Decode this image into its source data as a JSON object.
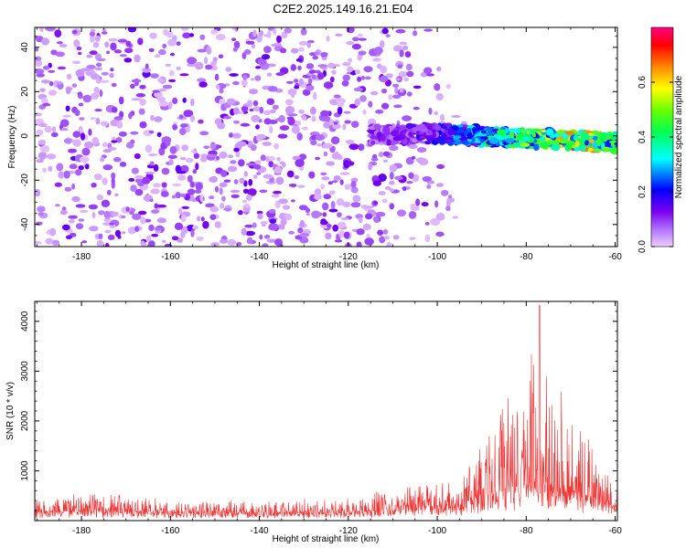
{
  "figure": {
    "title": "C2E2.2025.149.16.21.E04"
  },
  "chart_data": [
    {
      "type": "heatmap",
      "xlabel": "Height of straight line (km)",
      "ylabel": "Frequency (Hz)",
      "xlim": [
        -190.5,
        -59.5
      ],
      "ylim": [
        -50,
        49
      ],
      "xticks": [
        -180,
        -160,
        -140,
        -120,
        -100,
        -80,
        -60
      ],
      "yticks": [
        -40,
        -20,
        0,
        20,
        40
      ],
      "colorbar": {
        "label": "Normalized spectral amplitude",
        "range": [
          0.0,
          0.8
        ],
        "ticks": [
          0.0,
          0.2,
          0.4,
          0.6
        ],
        "colormap": [
          "#eecfff",
          "#b070ff",
          "#7a00ee",
          "#0000ff",
          "#00ffff",
          "#00ff55",
          "#66ff00",
          "#ffff00",
          "#ff8800",
          "#ff0000",
          "#ff0088"
        ]
      },
      "features": {
        "background_noise": "scattered purple blobs across full frequency range for heights -190 to -95 km",
        "signal_band": [
          {
            "x": -110,
            "y": 0.5,
            "amp": 0.12
          },
          {
            "x": -100,
            "y": 1.0,
            "amp": 0.2
          },
          {
            "x": -95,
            "y": 0.5,
            "amp": 0.3
          },
          {
            "x": -90,
            "y": 0,
            "amp": 0.35
          },
          {
            "x": -85,
            "y": -0.5,
            "amp": 0.45
          },
          {
            "x": -80,
            "y": -1,
            "amp": 0.5
          },
          {
            "x": -75,
            "y": -1.5,
            "amp": 0.55
          },
          {
            "x": -70,
            "y": -2,
            "amp": 0.65
          },
          {
            "x": -65,
            "y": -2.5,
            "amp": 0.6
          },
          {
            "x": -60,
            "y": -3,
            "amp": 0.5
          }
        ]
      }
    },
    {
      "type": "line",
      "series": [
        {
          "color": "#ee3333"
        }
      ],
      "xlabel": "Height of straight line (km)",
      "ylabel": "SNR (10 * v/v)",
      "xlim": [
        -190.5,
        -59.5
      ],
      "ylim": [
        0,
        4400
      ],
      "xticks": [
        -180,
        -160,
        -140,
        -120,
        -100,
        -80,
        -60
      ],
      "yticks": [
        1000,
        2000,
        3000,
        4000
      ],
      "envelope": [
        {
          "x": -190,
          "base": 120,
          "peak": 450
        },
        {
          "x": -175,
          "base": 130,
          "peak": 550
        },
        {
          "x": -160,
          "base": 110,
          "peak": 400
        },
        {
          "x": -140,
          "base": 100,
          "peak": 350
        },
        {
          "x": -120,
          "base": 120,
          "peak": 450
        },
        {
          "x": -105,
          "base": 180,
          "peak": 650
        },
        {
          "x": -95,
          "base": 220,
          "peak": 800
        },
        {
          "x": -90,
          "base": 300,
          "peak": 1400
        },
        {
          "x": -85,
          "base": 400,
          "peak": 2400
        },
        {
          "x": -80,
          "base": 500,
          "peak": 2500
        },
        {
          "x": -77,
          "base": 550,
          "peak": 4350
        },
        {
          "x": -75,
          "base": 500,
          "peak": 2700
        },
        {
          "x": -70,
          "base": 400,
          "peak": 2100
        },
        {
          "x": -65,
          "base": 300,
          "peak": 1500
        },
        {
          "x": -60,
          "base": 200,
          "peak": 700
        }
      ]
    }
  ]
}
